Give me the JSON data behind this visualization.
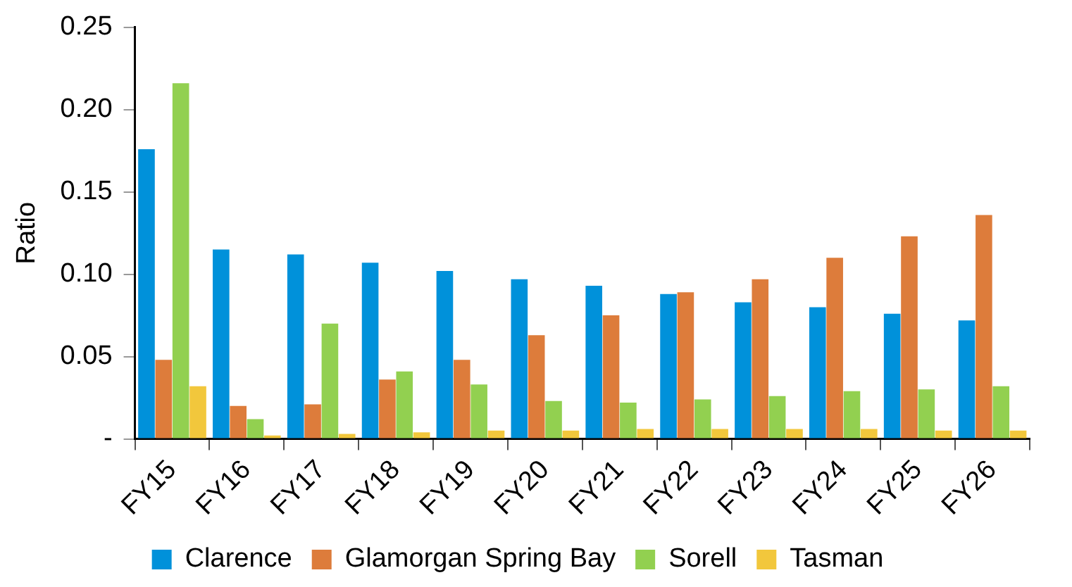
{
  "chart_data": {
    "type": "bar",
    "ylabel": "Ratio",
    "categories": [
      "FY15",
      "FY16",
      "FY17",
      "FY18",
      "FY19",
      "FY20",
      "FY21",
      "FY22",
      "FY23",
      "FY24",
      "FY25",
      "FY26"
    ],
    "series": [
      {
        "name": "Clarence",
        "color": "#0091da",
        "values": [
          0.176,
          0.115,
          0.112,
          0.107,
          0.102,
          0.097,
          0.093,
          0.088,
          0.083,
          0.08,
          0.076,
          0.072
        ]
      },
      {
        "name": "Glamorgan Spring Bay",
        "color": "#dd7c3b",
        "values": [
          0.048,
          0.02,
          0.021,
          0.036,
          0.048,
          0.063,
          0.075,
          0.089,
          0.097,
          0.11,
          0.123,
          0.136
        ]
      },
      {
        "name": "Sorell",
        "color": "#92d050",
        "values": [
          0.216,
          0.012,
          0.07,
          0.041,
          0.033,
          0.023,
          0.022,
          0.024,
          0.026,
          0.029,
          0.03,
          0.032
        ]
      },
      {
        "name": "Tasman",
        "color": "#f2c73c",
        "values": [
          0.032,
          0.002,
          0.003,
          0.004,
          0.005,
          0.005,
          0.006,
          0.006,
          0.006,
          0.006,
          0.005,
          0.005
        ]
      }
    ],
    "ylim": [
      0,
      0.25
    ],
    "yticks": [
      {
        "value": 0,
        "label": "-"
      },
      0.05,
      {
        "value": 0.1,
        "label": "0.10"
      },
      0.15,
      {
        "value": 0.2,
        "label": "0.20"
      },
      0.25
    ],
    "grid": false,
    "legend": "bottom"
  }
}
